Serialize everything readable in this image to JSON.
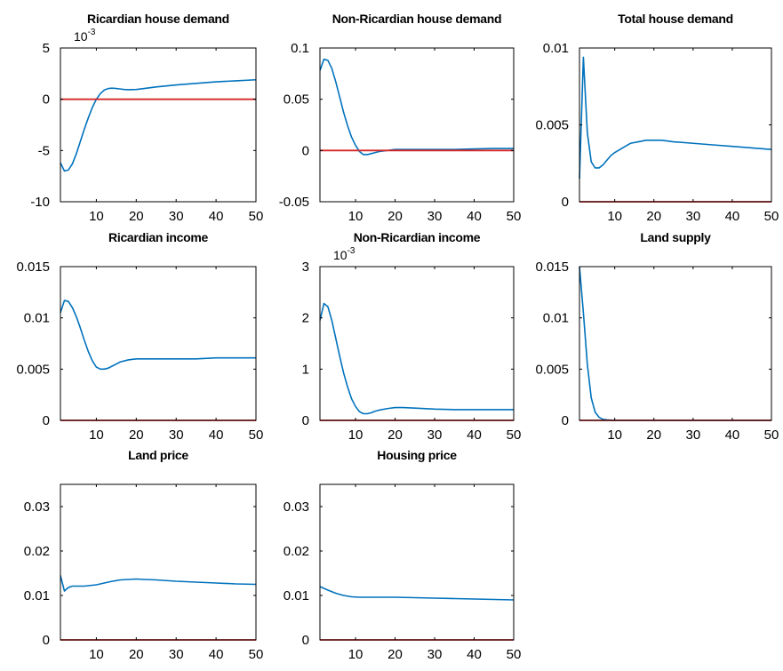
{
  "chart_data": [
    {
      "type": "line",
      "title": "Ricardian house demand",
      "exponent": "10",
      "exponent_power": "-3",
      "xlim": [
        1,
        50
      ],
      "ylim": [
        -10,
        5
      ],
      "xticks": [
        10,
        20,
        30,
        40,
        50
      ],
      "xtick_labels": [
        "10",
        "20",
        "30",
        "40",
        "50"
      ],
      "yticks": [
        -10,
        -5,
        0,
        5
      ],
      "ytick_labels": [
        "-10",
        "-5",
        "0",
        "5"
      ],
      "grid": false,
      "series": [
        {
          "color": "#0072BD",
          "x": [
            1,
            2,
            3,
            4,
            5,
            6,
            7,
            8,
            9,
            10,
            11,
            12,
            13,
            14,
            15,
            16,
            17,
            18,
            20,
            22,
            25,
            30,
            35,
            40,
            45,
            50
          ],
          "y": [
            -6.2,
            -7.0,
            -6.9,
            -6.3,
            -5.3,
            -4.1,
            -2.9,
            -1.8,
            -0.8,
            0.0,
            0.55,
            0.9,
            1.05,
            1.08,
            1.05,
            1.0,
            0.95,
            0.93,
            0.95,
            1.05,
            1.2,
            1.4,
            1.55,
            1.7,
            1.8,
            1.9
          ]
        },
        {
          "color": "#D62728",
          "x": [
            1,
            50
          ],
          "y": [
            0,
            0
          ]
        }
      ]
    },
    {
      "type": "line",
      "title": "Non-Ricardian house demand",
      "xlim": [
        1,
        50
      ],
      "ylim": [
        -0.05,
        0.1
      ],
      "xticks": [
        10,
        20,
        30,
        40,
        50
      ],
      "xtick_labels": [
        "10",
        "20",
        "30",
        "40",
        "50"
      ],
      "yticks": [
        -0.05,
        0,
        0.05,
        0.1
      ],
      "ytick_labels": [
        "-0.05",
        "0",
        "0.05",
        "0.1"
      ],
      "grid": false,
      "series": [
        {
          "color": "#0072BD",
          "x": [
            1,
            2,
            3,
            4,
            5,
            6,
            7,
            8,
            9,
            10,
            11,
            12,
            13,
            14,
            15,
            16,
            18,
            20,
            22,
            25,
            30,
            35,
            40,
            45,
            50
          ],
          "y": [
            0.078,
            0.089,
            0.088,
            0.08,
            0.067,
            0.052,
            0.037,
            0.024,
            0.013,
            0.005,
            -0.001,
            -0.004,
            -0.004,
            -0.003,
            -0.002,
            -0.001,
            0.0,
            0.001,
            0.001,
            0.001,
            0.001,
            0.001,
            0.0015,
            0.002,
            0.002
          ]
        },
        {
          "color": "#D62728",
          "x": [
            1,
            50
          ],
          "y": [
            0,
            0
          ]
        }
      ]
    },
    {
      "type": "line",
      "title": "Total house demand",
      "xlim": [
        1,
        50
      ],
      "ylim": [
        0,
        0.01
      ],
      "xticks": [
        10,
        20,
        30,
        40,
        50
      ],
      "xtick_labels": [
        "10",
        "20",
        "30",
        "40",
        "50"
      ],
      "yticks": [
        0,
        0.005,
        0.01
      ],
      "ytick_labels": [
        "0",
        "0.005",
        "0.01"
      ],
      "grid": false,
      "series": [
        {
          "color": "#0072BD",
          "x": [
            1,
            2,
            3,
            4,
            5,
            6,
            7,
            8,
            9,
            10,
            12,
            14,
            16,
            18,
            20,
            22,
            25,
            30,
            35,
            40,
            45,
            50
          ],
          "y": [
            0.0015,
            0.0094,
            0.0045,
            0.0026,
            0.0022,
            0.0022,
            0.0024,
            0.0027,
            0.003,
            0.0032,
            0.0035,
            0.0038,
            0.0039,
            0.004,
            0.004,
            0.004,
            0.0039,
            0.0038,
            0.0037,
            0.0036,
            0.0035,
            0.0034
          ]
        },
        {
          "color": "#D62728",
          "x": [
            1,
            50
          ],
          "y": [
            0,
            0
          ]
        }
      ]
    },
    {
      "type": "line",
      "title": "Ricardian income",
      "xlim": [
        1,
        50
      ],
      "ylim": [
        0,
        0.015
      ],
      "xticks": [
        10,
        20,
        30,
        40,
        50
      ],
      "xtick_labels": [
        "10",
        "20",
        "30",
        "40",
        "50"
      ],
      "yticks": [
        0,
        0.005,
        0.01,
        0.015
      ],
      "ytick_labels": [
        "0",
        "0.005",
        "0.01",
        "0.015"
      ],
      "grid": false,
      "series": [
        {
          "color": "#0072BD",
          "x": [
            1,
            2,
            3,
            4,
            5,
            6,
            7,
            8,
            9,
            10,
            11,
            12,
            13,
            14,
            15,
            16,
            18,
            20,
            22,
            25,
            30,
            35,
            40,
            45,
            50
          ],
          "y": [
            0.0105,
            0.0117,
            0.0116,
            0.011,
            0.0101,
            0.009,
            0.0078,
            0.0067,
            0.0058,
            0.0052,
            0.005,
            0.005,
            0.0051,
            0.0053,
            0.0055,
            0.0057,
            0.0059,
            0.006,
            0.006,
            0.006,
            0.006,
            0.006,
            0.0061,
            0.0061,
            0.0061
          ]
        },
        {
          "color": "#D62728",
          "x": [
            1,
            50
          ],
          "y": [
            0,
            0
          ]
        }
      ]
    },
    {
      "type": "line",
      "title": "Non-Ricardian income",
      "exponent": "10",
      "exponent_power": "-3",
      "xlim": [
        1,
        50
      ],
      "ylim": [
        0,
        3
      ],
      "xticks": [
        10,
        20,
        30,
        40,
        50
      ],
      "xtick_labels": [
        "10",
        "20",
        "30",
        "40",
        "50"
      ],
      "yticks": [
        0,
        1,
        2,
        3
      ],
      "ytick_labels": [
        "0",
        "1",
        "2",
        "3"
      ],
      "grid": false,
      "series": [
        {
          "color": "#0072BD",
          "x": [
            1,
            2,
            3,
            4,
            5,
            6,
            7,
            8,
            9,
            10,
            11,
            12,
            13,
            14,
            15,
            16,
            18,
            20,
            22,
            25,
            30,
            35,
            40,
            45,
            50
          ],
          "y": [
            1.95,
            2.28,
            2.22,
            1.95,
            1.6,
            1.25,
            0.92,
            0.65,
            0.42,
            0.27,
            0.17,
            0.13,
            0.13,
            0.15,
            0.18,
            0.2,
            0.23,
            0.25,
            0.25,
            0.24,
            0.22,
            0.21,
            0.21,
            0.21,
            0.21
          ]
        },
        {
          "color": "#D62728",
          "x": [
            1,
            50
          ],
          "y": [
            0,
            0
          ]
        }
      ]
    },
    {
      "type": "line",
      "title": "Land supply",
      "xlim": [
        1,
        50
      ],
      "ylim": [
        0,
        0.015
      ],
      "xticks": [
        10,
        20,
        30,
        40,
        50
      ],
      "xtick_labels": [
        "10",
        "20",
        "30",
        "40",
        "50"
      ],
      "yticks": [
        0,
        0.005,
        0.01,
        0.015
      ],
      "ytick_labels": [
        "0",
        "0.005",
        "0.01",
        "0.015"
      ],
      "grid": false,
      "series": [
        {
          "color": "#0072BD",
          "x": [
            1,
            2,
            3,
            4,
            5,
            6,
            7,
            8,
            10,
            15,
            20,
            30,
            40,
            50
          ],
          "y": [
            0.015,
            0.0105,
            0.0055,
            0.0022,
            0.0008,
            0.0003,
            0.0001,
            5e-05,
            0.0,
            0.0,
            0.0,
            0.0,
            0.0,
            0.0
          ]
        },
        {
          "color": "#D62728",
          "x": [
            1,
            50
          ],
          "y": [
            0,
            0
          ]
        }
      ]
    },
    {
      "type": "line",
      "title": "Land price",
      "xlim": [
        1,
        50
      ],
      "ylim": [
        0,
        0.035
      ],
      "xticks": [
        10,
        20,
        30,
        40,
        50
      ],
      "xtick_labels": [
        "10",
        "20",
        "30",
        "40",
        "50"
      ],
      "yticks": [
        0,
        0.01,
        0.02,
        0.03
      ],
      "ytick_labels": [
        "0",
        "0.01",
        "0.02",
        "0.03"
      ],
      "grid": false,
      "series": [
        {
          "color": "#0072BD",
          "x": [
            1,
            2,
            3,
            4,
            5,
            6,
            7,
            8,
            10,
            12,
            14,
            16,
            18,
            20,
            22,
            25,
            30,
            35,
            40,
            45,
            50
          ],
          "y": [
            0.0145,
            0.011,
            0.0118,
            0.0121,
            0.0121,
            0.0121,
            0.0121,
            0.0122,
            0.0124,
            0.0128,
            0.0132,
            0.0135,
            0.0136,
            0.0137,
            0.0136,
            0.0135,
            0.0132,
            0.013,
            0.0128,
            0.0126,
            0.0125
          ]
        },
        {
          "color": "#D62728",
          "x": [
            1,
            50
          ],
          "y": [
            0,
            0
          ]
        }
      ]
    },
    {
      "type": "line",
      "title": "Housing price",
      "xlim": [
        1,
        50
      ],
      "ylim": [
        0,
        0.035
      ],
      "xticks": [
        10,
        20,
        30,
        40,
        50
      ],
      "xtick_labels": [
        "10",
        "20",
        "30",
        "40",
        "50"
      ],
      "yticks": [
        0,
        0.01,
        0.02,
        0.03
      ],
      "ytick_labels": [
        "0",
        "0.01",
        "0.02",
        "0.03"
      ],
      "grid": false,
      "series": [
        {
          "color": "#0072BD",
          "x": [
            1,
            3,
            5,
            7,
            9,
            11,
            13,
            15,
            20,
            25,
            30,
            35,
            40,
            45,
            50
          ],
          "y": [
            0.012,
            0.0112,
            0.0105,
            0.01,
            0.0097,
            0.0096,
            0.0096,
            0.0096,
            0.0096,
            0.0095,
            0.0094,
            0.0093,
            0.0092,
            0.0091,
            0.009
          ]
        },
        {
          "color": "#D62728",
          "x": [
            1,
            50
          ],
          "y": [
            0,
            0
          ]
        }
      ]
    }
  ]
}
